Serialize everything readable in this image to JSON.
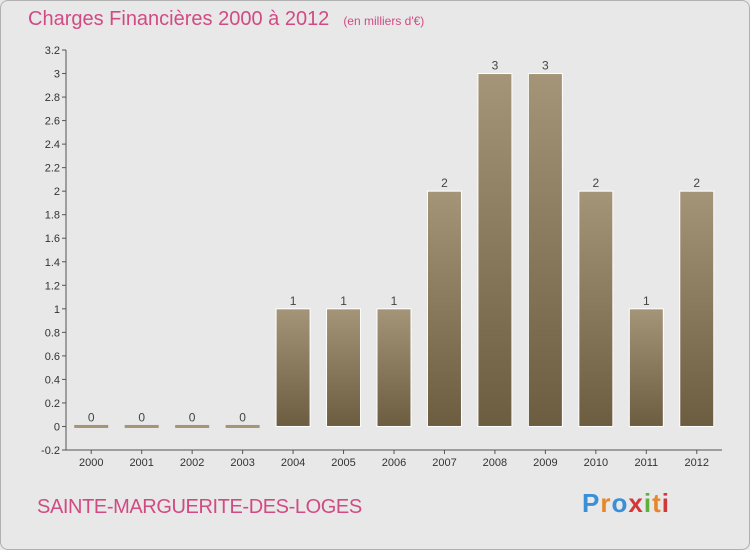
{
  "header": {
    "title": "Charges Financières 2000 à 2012",
    "subtitle": "(en milliers d'€)"
  },
  "footer": {
    "commune": "SAINTE-MARGUERITE-DES-LOGES",
    "logo_letters": [
      "P",
      "r",
      "o",
      "x",
      "i",
      "t",
      "i"
    ],
    "logo_colors": [
      "#3a8fd6",
      "#e8862a",
      "#3a8fd6",
      "#d2373a",
      "#5fae3e",
      "#e8862a",
      "#d2373a"
    ]
  },
  "colors": {
    "bar_top": "#a59578",
    "bar_bottom": "#6c5c40",
    "title": "#d24a84",
    "background": "#e8e8e8"
  },
  "chart_data": {
    "type": "bar",
    "categories": [
      "2000",
      "2001",
      "2002",
      "2003",
      "2004",
      "2005",
      "2006",
      "2007",
      "2008",
      "2009",
      "2010",
      "2011",
      "2012"
    ],
    "values": [
      0,
      0,
      0,
      0,
      1,
      1,
      1,
      2,
      3,
      3,
      2,
      1,
      2
    ],
    "data_labels": [
      "0",
      "0",
      "0",
      "0",
      "1",
      "1",
      "1",
      "2",
      "3",
      "3",
      "2",
      "1",
      "2"
    ],
    "y_ticks": [
      "3.2",
      "3",
      "2.8",
      "2.6",
      "2.4",
      "2.2",
      "2",
      "1.8",
      "1.6",
      "1.4",
      "1.2",
      "1",
      "0.8",
      "0.6",
      "0.4",
      "0.2",
      "0",
      "-0.2"
    ],
    "ylim": [
      -0.2,
      3.2
    ],
    "grid": false,
    "legend": "none"
  }
}
